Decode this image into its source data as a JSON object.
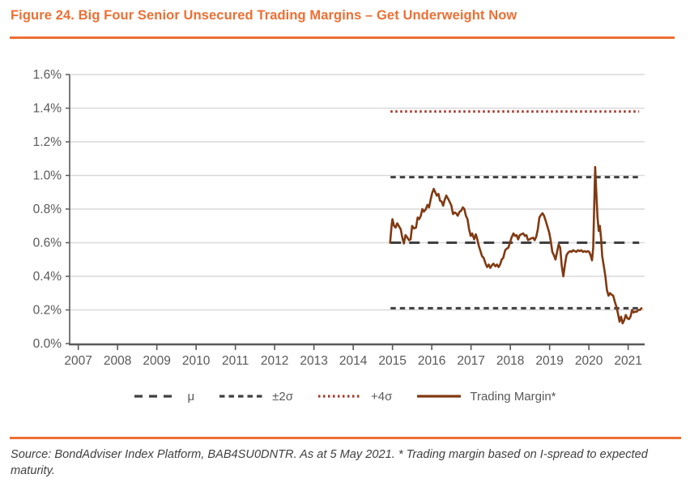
{
  "header": {
    "title": "Figure 24. Big Four Senior Unsecured Trading Margins – Get Underweight Now"
  },
  "footer": {
    "source": "Source: BondAdviser Index Platform, BAB4SU0DNTR. As at 5 May 2021. * Trading margin based on I-spread to expected maturity."
  },
  "colors": {
    "accent_orange": "#ED6F33",
    "trading_brown": "#803A12",
    "stat_gray": "#404040",
    "sigma4_red": "#A5382C",
    "gridline": "#D9D9D9",
    "axis": "#595959",
    "tick_text": "#595959"
  },
  "chart_data": {
    "type": "line",
    "title": "",
    "xlabel": "",
    "ylabel": "",
    "grid": "horizontal",
    "legend_position": "bottom",
    "xlim": [
      2006.78,
      2021.42
    ],
    "ylim": [
      0,
      1.6
    ],
    "x_ticks": [
      2007,
      2008,
      2009,
      2010,
      2011,
      2012,
      2013,
      2014,
      2015,
      2016,
      2017,
      2018,
      2019,
      2020,
      2021
    ],
    "y_ticks": [
      {
        "value": 0.0,
        "label": "0.0%"
      },
      {
        "value": 0.2,
        "label": "0.2%"
      },
      {
        "value": 0.4,
        "label": "0.4%"
      },
      {
        "value": 0.6,
        "label": "0.6%"
      },
      {
        "value": 0.8,
        "label": "0.8%"
      },
      {
        "value": 1.0,
        "label": "1.0%"
      },
      {
        "value": 1.2,
        "label": "1.2%"
      },
      {
        "value": 1.4,
        "label": "1.4%"
      },
      {
        "value": 1.6,
        "label": "1.6%"
      }
    ],
    "reference_lines": [
      {
        "name": "mu",
        "label": "μ",
        "value": 0.6,
        "x_start": 2014.95,
        "x_end": 2021.28,
        "style": "long-dash",
        "color": "#404040"
      },
      {
        "name": "plus-2-sigma",
        "label": "+2σ",
        "value": 0.99,
        "x_start": 2014.95,
        "x_end": 2021.28,
        "style": "dash",
        "color": "#404040"
      },
      {
        "name": "minus-2-sigma",
        "label": "-2σ",
        "value": 0.21,
        "x_start": 2014.95,
        "x_end": 2021.28,
        "style": "dash",
        "color": "#404040"
      },
      {
        "name": "plus-4-sigma",
        "label": "+4σ",
        "value": 1.38,
        "x_start": 2014.95,
        "x_end": 2021.28,
        "style": "dotted",
        "color": "#A5382C"
      }
    ],
    "series": [
      {
        "name": "Trading Margin*",
        "unit": "%",
        "color": "#803A12",
        "points": [
          [
            2014.94,
            0.6
          ],
          [
            2014.98,
            0.71
          ],
          [
            2015.0,
            0.74
          ],
          [
            2015.04,
            0.7
          ],
          [
            2015.08,
            0.69
          ],
          [
            2015.12,
            0.715
          ],
          [
            2015.16,
            0.7
          ],
          [
            2015.21,
            0.68
          ],
          [
            2015.25,
            0.63
          ],
          [
            2015.29,
            0.595
          ],
          [
            2015.33,
            0.645
          ],
          [
            2015.38,
            0.63
          ],
          [
            2015.42,
            0.615
          ],
          [
            2015.46,
            0.62
          ],
          [
            2015.5,
            0.7
          ],
          [
            2015.55,
            0.685
          ],
          [
            2015.6,
            0.69
          ],
          [
            2015.64,
            0.75
          ],
          [
            2015.68,
            0.74
          ],
          [
            2015.72,
            0.76
          ],
          [
            2015.76,
            0.8
          ],
          [
            2015.8,
            0.785
          ],
          [
            2015.85,
            0.8
          ],
          [
            2015.89,
            0.825
          ],
          [
            2015.93,
            0.81
          ],
          [
            2015.97,
            0.855
          ],
          [
            2016.01,
            0.895
          ],
          [
            2016.05,
            0.92
          ],
          [
            2016.09,
            0.9
          ],
          [
            2016.13,
            0.88
          ],
          [
            2016.17,
            0.89
          ],
          [
            2016.21,
            0.85
          ],
          [
            2016.25,
            0.845
          ],
          [
            2016.29,
            0.82
          ],
          [
            2016.33,
            0.855
          ],
          [
            2016.37,
            0.88
          ],
          [
            2016.42,
            0.86
          ],
          [
            2016.46,
            0.84
          ],
          [
            2016.5,
            0.82
          ],
          [
            2016.54,
            0.77
          ],
          [
            2016.58,
            0.78
          ],
          [
            2016.62,
            0.775
          ],
          [
            2016.66,
            0.76
          ],
          [
            2016.71,
            0.785
          ],
          [
            2016.75,
            0.79
          ],
          [
            2016.79,
            0.81
          ],
          [
            2016.83,
            0.8
          ],
          [
            2016.87,
            0.76
          ],
          [
            2016.91,
            0.74
          ],
          [
            2016.95,
            0.68
          ],
          [
            2016.99,
            0.64
          ],
          [
            2017.03,
            0.655
          ],
          [
            2017.08,
            0.62
          ],
          [
            2017.12,
            0.65
          ],
          [
            2017.16,
            0.62
          ],
          [
            2017.2,
            0.58
          ],
          [
            2017.24,
            0.55
          ],
          [
            2017.28,
            0.52
          ],
          [
            2017.32,
            0.51
          ],
          [
            2017.37,
            0.475
          ],
          [
            2017.41,
            0.455
          ],
          [
            2017.45,
            0.47
          ],
          [
            2017.49,
            0.45
          ],
          [
            2017.53,
            0.465
          ],
          [
            2017.57,
            0.475
          ],
          [
            2017.62,
            0.46
          ],
          [
            2017.66,
            0.47
          ],
          [
            2017.7,
            0.455
          ],
          [
            2017.74,
            0.47
          ],
          [
            2017.78,
            0.5
          ],
          [
            2017.82,
            0.51
          ],
          [
            2017.87,
            0.555
          ],
          [
            2017.91,
            0.565
          ],
          [
            2017.95,
            0.57
          ],
          [
            2017.99,
            0.6
          ],
          [
            2018.03,
            0.63
          ],
          [
            2018.08,
            0.655
          ],
          [
            2018.12,
            0.64
          ],
          [
            2018.16,
            0.645
          ],
          [
            2018.2,
            0.62
          ],
          [
            2018.24,
            0.645
          ],
          [
            2018.28,
            0.65
          ],
          [
            2018.33,
            0.655
          ],
          [
            2018.37,
            0.64
          ],
          [
            2018.41,
            0.645
          ],
          [
            2018.45,
            0.615
          ],
          [
            2018.49,
            0.62
          ],
          [
            2018.53,
            0.625
          ],
          [
            2018.58,
            0.63
          ],
          [
            2018.62,
            0.615
          ],
          [
            2018.66,
            0.635
          ],
          [
            2018.7,
            0.68
          ],
          [
            2018.74,
            0.75
          ],
          [
            2018.78,
            0.765
          ],
          [
            2018.82,
            0.775
          ],
          [
            2018.86,
            0.76
          ],
          [
            2018.9,
            0.73
          ],
          [
            2018.94,
            0.7
          ],
          [
            2018.99,
            0.66
          ],
          [
            2019.03,
            0.61
          ],
          [
            2019.07,
            0.545
          ],
          [
            2019.11,
            0.525
          ],
          [
            2019.15,
            0.5
          ],
          [
            2019.19,
            0.545
          ],
          [
            2019.23,
            0.59
          ],
          [
            2019.27,
            0.57
          ],
          [
            2019.31,
            0.46
          ],
          [
            2019.35,
            0.4
          ],
          [
            2019.39,
            0.47
          ],
          [
            2019.43,
            0.525
          ],
          [
            2019.47,
            0.54
          ],
          [
            2019.52,
            0.55
          ],
          [
            2019.56,
            0.545
          ],
          [
            2019.6,
            0.555
          ],
          [
            2019.64,
            0.55
          ],
          [
            2019.68,
            0.545
          ],
          [
            2019.72,
            0.555
          ],
          [
            2019.77,
            0.55
          ],
          [
            2019.81,
            0.555
          ],
          [
            2019.85,
            0.545
          ],
          [
            2019.89,
            0.55
          ],
          [
            2019.93,
            0.545
          ],
          [
            2019.97,
            0.55
          ],
          [
            2020.01,
            0.545
          ],
          [
            2020.05,
            0.52
          ],
          [
            2020.08,
            0.495
          ],
          [
            2020.11,
            0.57
          ],
          [
            2020.13,
            0.75
          ],
          [
            2020.16,
            1.05
          ],
          [
            2020.19,
            0.9
          ],
          [
            2020.22,
            0.75
          ],
          [
            2020.25,
            0.67
          ],
          [
            2020.28,
            0.7
          ],
          [
            2020.31,
            0.625
          ],
          [
            2020.34,
            0.52
          ],
          [
            2020.38,
            0.46
          ],
          [
            2020.42,
            0.4
          ],
          [
            2020.46,
            0.32
          ],
          [
            2020.5,
            0.285
          ],
          [
            2020.54,
            0.3
          ],
          [
            2020.58,
            0.29
          ],
          [
            2020.62,
            0.285
          ],
          [
            2020.66,
            0.25
          ],
          [
            2020.7,
            0.22
          ],
          [
            2020.74,
            0.18
          ],
          [
            2020.78,
            0.13
          ],
          [
            2020.82,
            0.16
          ],
          [
            2020.86,
            0.12
          ],
          [
            2020.9,
            0.14
          ],
          [
            2020.94,
            0.17
          ],
          [
            2020.98,
            0.15
          ],
          [
            2021.02,
            0.145
          ],
          [
            2021.06,
            0.16
          ],
          [
            2021.1,
            0.2
          ],
          [
            2021.14,
            0.185
          ],
          [
            2021.18,
            0.19
          ],
          [
            2021.22,
            0.19
          ],
          [
            2021.26,
            0.2
          ],
          [
            2021.3,
            0.2
          ],
          [
            2021.34,
            0.21
          ]
        ]
      }
    ],
    "legend": [
      {
        "label": "μ",
        "style": "long-dash",
        "color": "#404040"
      },
      {
        "label": "±2σ",
        "style": "dash",
        "color": "#404040"
      },
      {
        "label": "+4σ",
        "style": "dotted",
        "color": "#A5382C"
      },
      {
        "label": "Trading Margin*",
        "style": "solid",
        "color": "#803A12"
      }
    ]
  }
}
